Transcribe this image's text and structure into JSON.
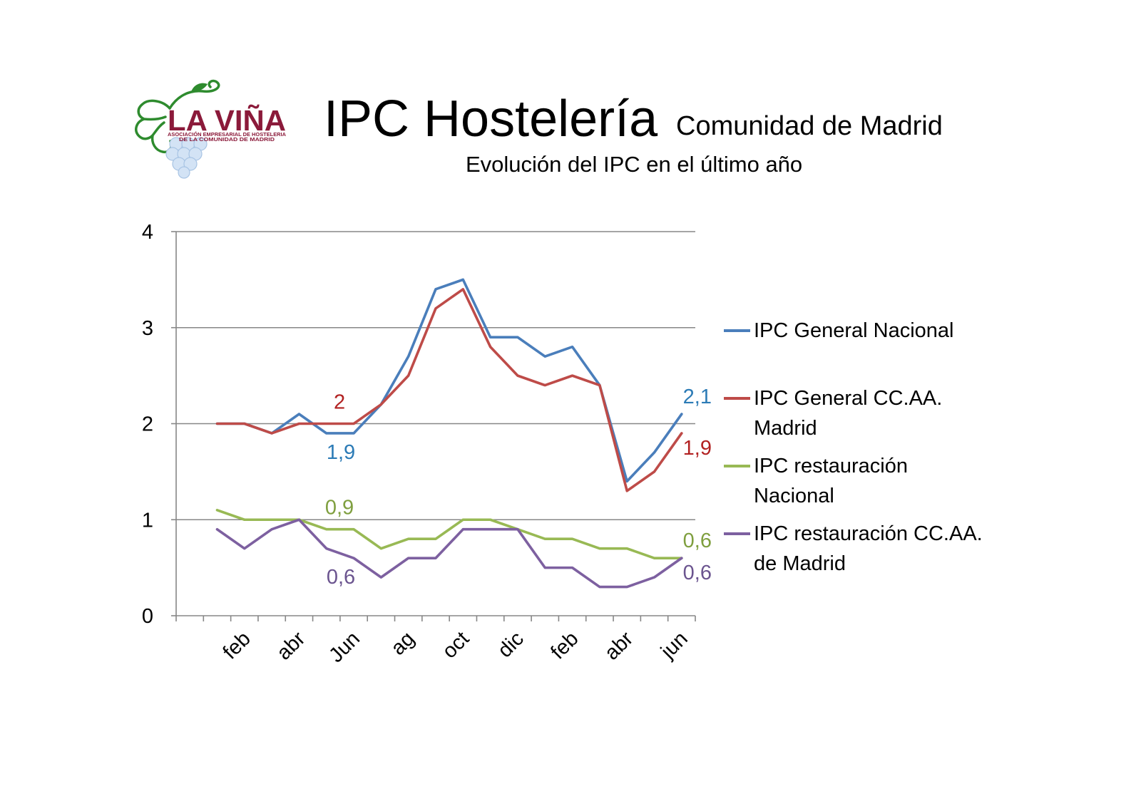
{
  "logo": {
    "name": "LA VIÑA",
    "tagline_line1": "ASOCIACIÓN EMPRESARIAL DE HOSTELERIA",
    "tagline_line2": "DE LA COMUNIDAD DE MADRID",
    "icon": "grape-vine-icon",
    "text_color": "#8b1a3a",
    "vine_color": "#2e8b2e",
    "grape_color": "#d3e3f5",
    "grape_outline_color": "#a8c4e4"
  },
  "chart_data": {
    "type": "line",
    "title": "IPC Hostelería",
    "title_suffix": "Comunidad de Madrid",
    "subtitle": "Evolución del IPC en el último año",
    "xlabel": "",
    "ylabel": "",
    "categories": [
      "",
      "",
      "feb",
      "",
      "abr",
      "",
      "Jun",
      "",
      "ag",
      "",
      "oct",
      "",
      "dic",
      "",
      "feb",
      "",
      "abr",
      "",
      "jun"
    ],
    "ylim": [
      0,
      4
    ],
    "yticks": [
      0,
      1,
      2,
      3,
      4
    ],
    "grid": true,
    "legend_position": "right",
    "series": [
      {
        "name": "IPC General Nacional",
        "color": "#4a7ebb",
        "label_color": "#2c7bb6",
        "values": [
          null,
          2,
          2,
          1.9,
          2.1,
          1.9,
          1.9,
          2.2,
          2.7,
          3.4,
          3.5,
          2.9,
          2.9,
          2.7,
          2.8,
          2.4,
          1.4,
          1.7,
          2.1
        ],
        "data_labels": [
          {
            "index": 6,
            "text": "1,9",
            "position": "below-left"
          },
          {
            "index": 18,
            "text": "2,1",
            "position": "above-right"
          }
        ]
      },
      {
        "name": "IPC General CC.AA. Madrid",
        "color": "#be4b48",
        "label_color": "#b22222",
        "values": [
          null,
          2,
          2,
          1.9,
          2,
          2,
          2,
          2.2,
          2.5,
          3.2,
          3.4,
          2.8,
          2.5,
          2.4,
          2.5,
          2.4,
          1.3,
          1.5,
          1.9
        ],
        "data_labels": [
          {
            "index": 6,
            "text": "2",
            "position": "above-left"
          },
          {
            "index": 18,
            "text": "1,9",
            "position": "below-right"
          }
        ]
      },
      {
        "name": "IPC restauración Nacional",
        "color": "#98b954",
        "label_color": "#7f9f3f",
        "values": [
          null,
          1.1,
          1,
          1,
          1,
          0.9,
          0.9,
          0.7,
          0.8,
          0.8,
          1,
          1,
          0.9,
          0.8,
          0.8,
          0.7,
          0.7,
          0.6,
          0.6
        ],
        "data_labels": [
          {
            "index": 6,
            "text": "0,9",
            "position": "above-left"
          },
          {
            "index": 18,
            "text": "0,6",
            "position": "above-right"
          }
        ]
      },
      {
        "name": "IPC restauración CC.AA. de Madrid",
        "color": "#7d60a0",
        "label_color": "#6b548f",
        "values": [
          null,
          0.9,
          0.7,
          0.9,
          1,
          0.7,
          0.6,
          0.4,
          0.6,
          0.6,
          0.9,
          0.9,
          0.9,
          0.5,
          0.5,
          0.3,
          0.3,
          0.4,
          0.6
        ],
        "data_labels": [
          {
            "index": 6,
            "text": "0,6",
            "position": "below-left"
          },
          {
            "index": 18,
            "text": "0,6",
            "position": "below-right"
          }
        ]
      }
    ]
  }
}
